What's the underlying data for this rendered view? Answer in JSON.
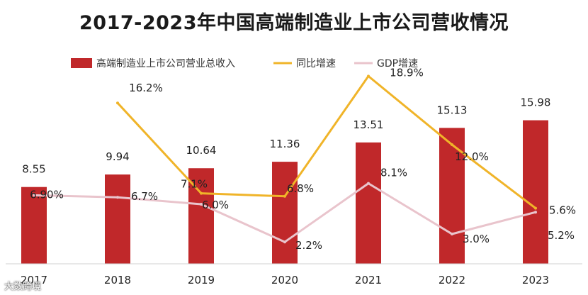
{
  "title": "2017-2023年中国高端制造业上市公司营收情况",
  "watermark": "大数跨境",
  "colors": {
    "bar": "#c0282a",
    "yoy": "#f0b429",
    "gdp": "#e9c4cc"
  },
  "chart_data": {
    "type": "bar",
    "categories": [
      "2017",
      "2018",
      "2019",
      "2020",
      "2021",
      "2022",
      "2023"
    ],
    "legend": [
      "高端制造业上市公司营业总收入",
      "同比增速",
      "GDP增速"
    ],
    "series": [
      {
        "name": "高端制造业上市公司营业总收入",
        "type": "bar",
        "values": [
          8.55,
          9.94,
          10.64,
          11.36,
          13.51,
          15.13,
          15.98
        ],
        "labels": [
          "8.55",
          "9.94",
          "10.64",
          "11.36",
          "13.51",
          "15.13",
          "15.98"
        ]
      },
      {
        "name": "同比增速",
        "type": "line",
        "values": [
          null,
          16.2,
          7.1,
          6.8,
          18.9,
          12.0,
          5.6
        ],
        "labels": [
          null,
          "16.2%",
          "7.1%",
          "6.8%",
          "18.9%",
          "12.0%",
          "5.6%"
        ]
      },
      {
        "name": "GDP增速",
        "type": "line",
        "values": [
          6.9,
          6.7,
          6.0,
          2.2,
          8.1,
          3.0,
          5.2
        ],
        "labels": [
          "6.90%",
          "6.7%",
          "6.0%",
          "2.2%",
          "8.1%",
          "3.0%",
          "5.2%"
        ]
      }
    ],
    "bar_ylim": [
      0,
      18
    ],
    "line_ylim": [
      0,
      21
    ]
  }
}
